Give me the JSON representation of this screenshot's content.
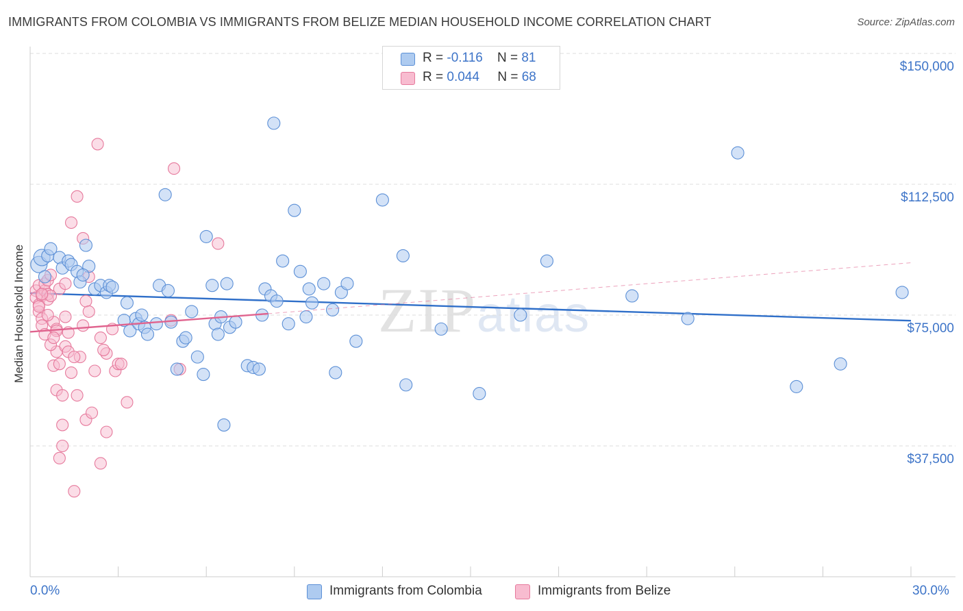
{
  "title": "IMMIGRANTS FROM COLOMBIA VS IMMIGRANTS FROM BELIZE MEDIAN HOUSEHOLD INCOME CORRELATION CHART",
  "source": "Source: ZipAtlas.com",
  "watermark": {
    "zip": "ZIP",
    "atlas": "atlas"
  },
  "legend": {
    "colombia": {
      "r_label": "R = ",
      "r_value": "-0.116",
      "n_label": "N = ",
      "n_value": "81"
    },
    "belize": {
      "r_label": "R = ",
      "r_value": "0.044",
      "n_label": "N = ",
      "n_value": "68"
    }
  },
  "bottom_legend": {
    "colombia": "Immigrants from Colombia",
    "belize": "Immigrants from Belize"
  },
  "colors": {
    "colombia_fill": "#aecbf0",
    "colombia_stroke": "#5b8fd6",
    "colombia_line": "#2f6fc9",
    "belize_fill": "#f8bcd0",
    "belize_stroke": "#e6799c",
    "belize_line": "#e0638e"
  },
  "chart_data": {
    "type": "scatter",
    "title": "IMMIGRANTS FROM COLOMBIA VS IMMIGRANTS FROM BELIZE MEDIAN HOUSEHOLD INCOME CORRELATION CHART",
    "xlabel": "",
    "ylabel": "Median Household Income",
    "xlim": [
      0,
      30
    ],
    "ylim": [
      0,
      153000
    ],
    "x_tick_labels": [
      "0.0%",
      "30.0%"
    ],
    "y_ticks": [
      37500,
      75000,
      112500,
      150000
    ],
    "y_tick_labels": [
      "$37,500",
      "$75,000",
      "$112,500",
      "$150,000"
    ],
    "grid": "horizontal dashed",
    "legend_position": "top-center",
    "series": [
      {
        "name": "Immigrants from Colombia",
        "trend": {
          "x": [
            0,
            30
          ],
          "y": [
            81300,
            73400
          ]
        },
        "points": [
          [
            0.3,
            89500
          ],
          [
            0.4,
            91500
          ],
          [
            0.6,
            92000
          ],
          [
            0.7,
            94000
          ],
          [
            1.0,
            91500
          ],
          [
            1.1,
            88500
          ],
          [
            1.3,
            90500
          ],
          [
            1.4,
            89500
          ],
          [
            1.6,
            87500
          ],
          [
            1.7,
            84500
          ],
          [
            1.9,
            95000
          ],
          [
            2.0,
            89000
          ],
          [
            2.2,
            82500
          ],
          [
            2.4,
            83500
          ],
          [
            2.6,
            81500
          ],
          [
            2.7,
            83500
          ],
          [
            2.8,
            83000
          ],
          [
            3.2,
            73500
          ],
          [
            3.3,
            78500
          ],
          [
            3.4,
            70500
          ],
          [
            3.6,
            74000
          ],
          [
            3.7,
            72500
          ],
          [
            3.8,
            75000
          ],
          [
            3.9,
            71500
          ],
          [
            4.0,
            69500
          ],
          [
            4.3,
            72500
          ],
          [
            4.4,
            83500
          ],
          [
            4.6,
            109500
          ],
          [
            4.7,
            82000
          ],
          [
            4.8,
            73000
          ],
          [
            5.0,
            59500
          ],
          [
            5.2,
            67500
          ],
          [
            5.3,
            68500
          ],
          [
            5.5,
            76000
          ],
          [
            5.7,
            63000
          ],
          [
            5.9,
            58000
          ],
          [
            6.0,
            97500
          ],
          [
            6.2,
            83500
          ],
          [
            6.3,
            72500
          ],
          [
            6.4,
            69500
          ],
          [
            6.5,
            74500
          ],
          [
            6.6,
            43500
          ],
          [
            6.7,
            84000
          ],
          [
            6.8,
            71500
          ],
          [
            7.0,
            73000
          ],
          [
            7.4,
            60500
          ],
          [
            7.6,
            60000
          ],
          [
            7.8,
            59500
          ],
          [
            7.9,
            75000
          ],
          [
            8.0,
            82500
          ],
          [
            8.2,
            80500
          ],
          [
            8.4,
            79000
          ],
          [
            8.3,
            130000
          ],
          [
            8.6,
            90500
          ],
          [
            8.8,
            72500
          ],
          [
            9.0,
            105000
          ],
          [
            9.2,
            87500
          ],
          [
            9.4,
            74500
          ],
          [
            9.5,
            82500
          ],
          [
            9.6,
            78500
          ],
          [
            10.0,
            84000
          ],
          [
            10.3,
            76500
          ],
          [
            10.4,
            58500
          ],
          [
            10.6,
            81500
          ],
          [
            10.8,
            84000
          ],
          [
            11.1,
            67500
          ],
          [
            12.0,
            108000
          ],
          [
            12.8,
            55000
          ],
          [
            12.7,
            92000
          ],
          [
            14.0,
            71000
          ],
          [
            15.3,
            52500
          ],
          [
            16.7,
            75000
          ],
          [
            17.6,
            90500
          ],
          [
            20.5,
            80500
          ],
          [
            22.4,
            74000
          ],
          [
            24.1,
            121500
          ],
          [
            26.1,
            54500
          ],
          [
            27.6,
            61000
          ],
          [
            29.7,
            81500
          ],
          [
            0.5,
            86000
          ],
          [
            1.8,
            86500
          ]
        ]
      },
      {
        "name": "Immigrants from Belize",
        "trend": {
          "x": [
            0,
            8.1
          ],
          "y": [
            70200,
            75400
          ]
        },
        "trend_extension": {
          "x": [
            8.1,
            30
          ],
          "y": [
            75400,
            90000
          ]
        },
        "points": [
          [
            0.2,
            82000
          ],
          [
            0.2,
            80000
          ],
          [
            0.3,
            78000
          ],
          [
            0.3,
            76000
          ],
          [
            0.3,
            83500
          ],
          [
            0.4,
            74000
          ],
          [
            0.4,
            80500
          ],
          [
            0.4,
            72000
          ],
          [
            0.5,
            82000
          ],
          [
            0.5,
            84000
          ],
          [
            0.6,
            85000
          ],
          [
            0.6,
            81000
          ],
          [
            0.6,
            79500
          ],
          [
            0.5,
            69500
          ],
          [
            0.7,
            80500
          ],
          [
            0.7,
            86500
          ],
          [
            0.8,
            73000
          ],
          [
            0.8,
            60500
          ],
          [
            0.9,
            71000
          ],
          [
            0.9,
            64500
          ],
          [
            0.9,
            53500
          ],
          [
            1.0,
            61000
          ],
          [
            1.0,
            34000
          ],
          [
            1.1,
            43500
          ],
          [
            1.1,
            52000
          ],
          [
            1.1,
            37500
          ],
          [
            1.2,
            66000
          ],
          [
            1.2,
            74500
          ],
          [
            1.3,
            70000
          ],
          [
            1.3,
            64500
          ],
          [
            1.4,
            101500
          ],
          [
            1.4,
            58500
          ],
          [
            1.5,
            24500
          ],
          [
            1.6,
            109000
          ],
          [
            1.6,
            52000
          ],
          [
            1.7,
            63000
          ],
          [
            1.8,
            97000
          ],
          [
            1.8,
            72000
          ],
          [
            1.9,
            79000
          ],
          [
            1.9,
            45000
          ],
          [
            2.0,
            76000
          ],
          [
            2.0,
            86000
          ],
          [
            2.1,
            47000
          ],
          [
            2.2,
            59000
          ],
          [
            2.3,
            124000
          ],
          [
            2.4,
            32500
          ],
          [
            2.4,
            68500
          ],
          [
            2.6,
            41500
          ],
          [
            2.6,
            64000
          ],
          [
            2.8,
            71000
          ],
          [
            2.9,
            59000
          ],
          [
            3.0,
            61000
          ],
          [
            3.1,
            61000
          ],
          [
            3.3,
            50000
          ],
          [
            4.8,
            73500
          ],
          [
            4.9,
            117000
          ],
          [
            5.1,
            59500
          ],
          [
            6.4,
            95500
          ],
          [
            0.3,
            77500
          ],
          [
            0.4,
            81000
          ],
          [
            0.7,
            66500
          ],
          [
            1.0,
            82500
          ],
          [
            1.2,
            84000
          ],
          [
            1.5,
            63000
          ],
          [
            2.5,
            65000
          ],
          [
            0.9,
            70500
          ],
          [
            0.6,
            75000
          ],
          [
            0.8,
            68500
          ]
        ]
      }
    ]
  }
}
